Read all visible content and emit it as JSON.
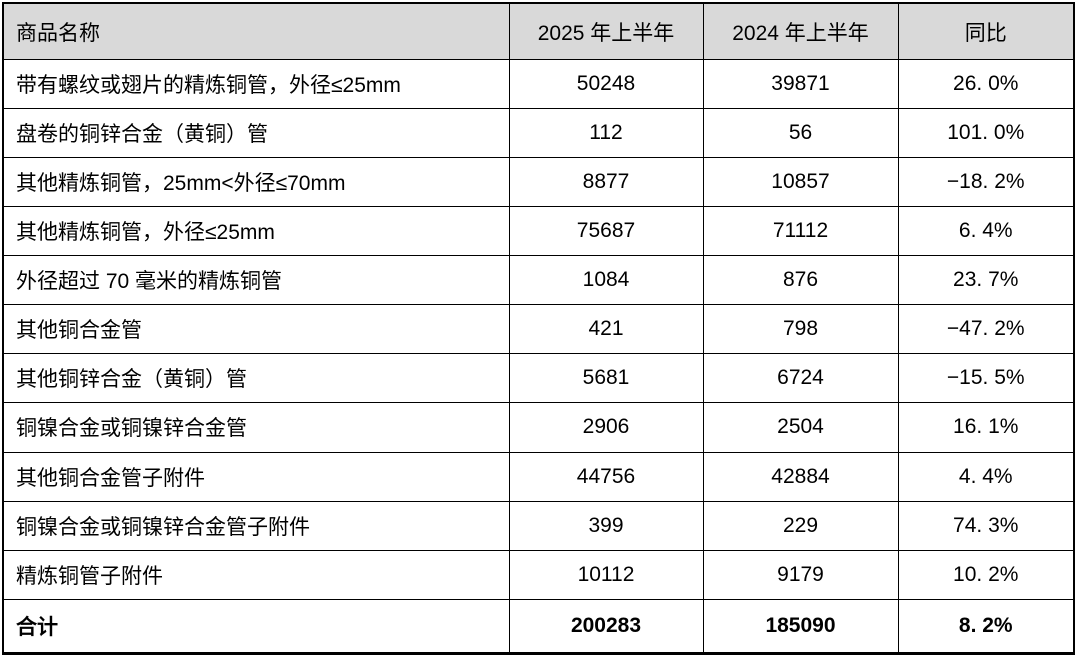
{
  "table": {
    "columns": [
      "商品名称",
      "2025 年上半年",
      "2024 年上半年",
      "同比"
    ],
    "rows": [
      {
        "name": "带有螺纹或翅片的精炼铜管，外径≤25mm",
        "h1_2025": "50248",
        "h1_2024": "39871",
        "yoy": "26. 0%"
      },
      {
        "name": "盘卷的铜锌合金（黄铜）管",
        "h1_2025": "112",
        "h1_2024": "56",
        "yoy": "101. 0%"
      },
      {
        "name": "其他精炼铜管，25mm<外径≤70mm",
        "h1_2025": "8877",
        "h1_2024": "10857",
        "yoy": "−18. 2%"
      },
      {
        "name": "其他精炼铜管，外径≤25mm",
        "h1_2025": "75687",
        "h1_2024": "71112",
        "yoy": "6. 4%"
      },
      {
        "name": "外径超过 70 毫米的精炼铜管",
        "h1_2025": "1084",
        "h1_2024": "876",
        "yoy": "23. 7%"
      },
      {
        "name": "其他铜合金管",
        "h1_2025": "421",
        "h1_2024": "798",
        "yoy": "−47. 2%"
      },
      {
        "name": "其他铜锌合金（黄铜）管",
        "h1_2025": "5681",
        "h1_2024": "6724",
        "yoy": "−15. 5%"
      },
      {
        "name": "铜镍合金或铜镍锌合金管",
        "h1_2025": "2906",
        "h1_2024": "2504",
        "yoy": "16. 1%"
      },
      {
        "name": "其他铜合金管子附件",
        "h1_2025": "44756",
        "h1_2024": "42884",
        "yoy": "4. 4%"
      },
      {
        "name": "铜镍合金或铜镍锌合金管子附件",
        "h1_2025": "399",
        "h1_2024": "229",
        "yoy": "74. 3%"
      },
      {
        "name": "精炼铜管子附件",
        "h1_2025": "10112",
        "h1_2024": "9179",
        "yoy": "10. 2%"
      }
    ],
    "total": {
      "name": "合计",
      "h1_2025": "200283",
      "h1_2024": "185090",
      "yoy": "8. 2%"
    }
  },
  "colors": {
    "header_bg": "#d9d9d9",
    "border": "#000000",
    "text": "#000000"
  }
}
